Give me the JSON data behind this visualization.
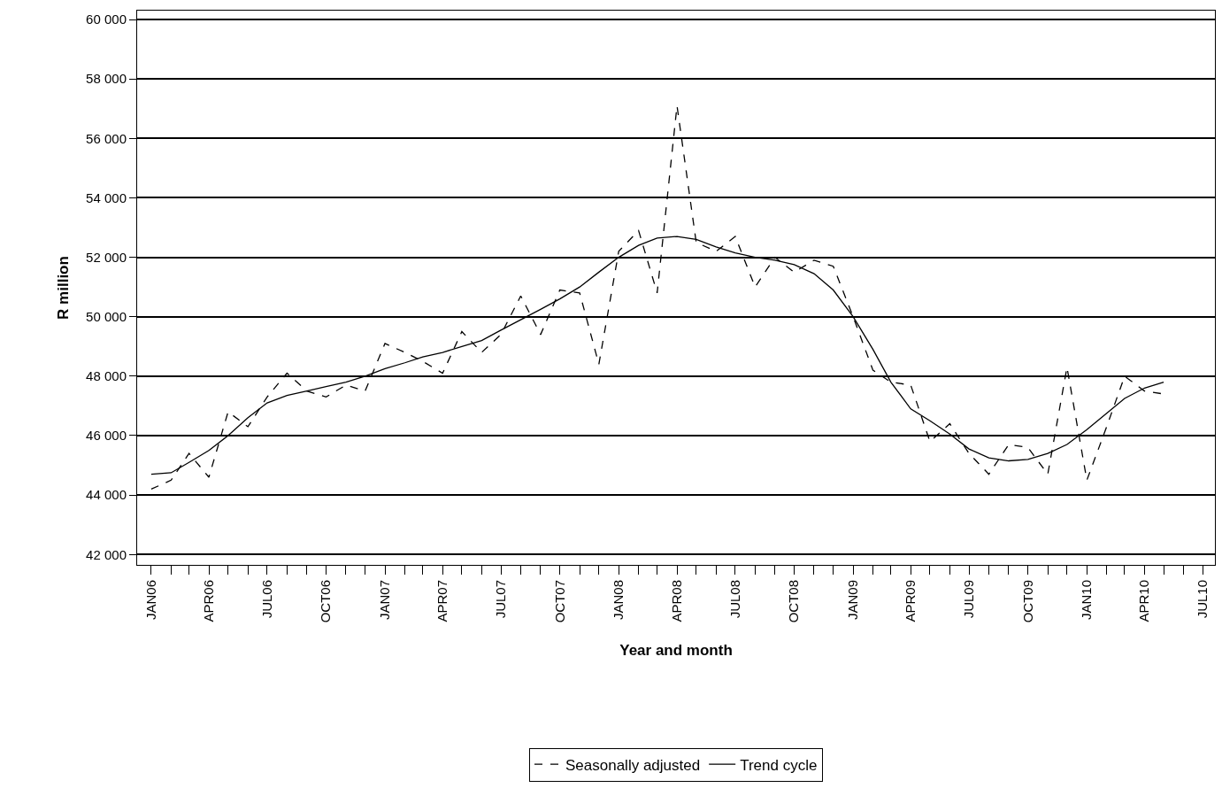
{
  "chart_data": {
    "type": "line",
    "xlabel": "Year and month",
    "ylabel": "R million",
    "x": [
      "2006-01",
      "2006-02",
      "2006-03",
      "2006-04",
      "2006-05",
      "2006-06",
      "2006-07",
      "2006-08",
      "2006-09",
      "2006-10",
      "2006-11",
      "2006-12",
      "2007-01",
      "2007-02",
      "2007-03",
      "2007-04",
      "2007-05",
      "2007-06",
      "2007-07",
      "2007-08",
      "2007-09",
      "2007-10",
      "2007-11",
      "2007-12",
      "2008-01",
      "2008-02",
      "2008-03",
      "2008-04",
      "2008-05",
      "2008-06",
      "2008-07",
      "2008-08",
      "2008-09",
      "2008-10",
      "2008-11",
      "2008-12",
      "2009-01",
      "2009-02",
      "2009-03",
      "2009-04",
      "2009-05",
      "2009-06",
      "2009-07",
      "2009-08",
      "2009-09",
      "2009-10",
      "2009-11",
      "2009-12",
      "2010-01",
      "2010-02",
      "2010-03",
      "2010-04",
      "2010-05"
    ],
    "series": [
      {
        "name": "Seasonally adjusted",
        "color": "#000000",
        "line_style": "dashed",
        "values": [
          44200,
          44500,
          45400,
          44600,
          46800,
          46300,
          47300,
          48100,
          47500,
          47300,
          47700,
          47500,
          49100,
          48800,
          48500,
          48100,
          49500,
          48800,
          49400,
          50700,
          49400,
          50900,
          50800,
          48400,
          52200,
          52900,
          50800,
          57100,
          52500,
          52200,
          52700,
          51000,
          52000,
          51500,
          51900,
          51700,
          50000,
          48200,
          47800,
          47700,
          45800,
          46400,
          45400,
          44700,
          45700,
          45600,
          44700,
          48300,
          44500,
          46300,
          48000,
          47500,
          47400
        ]
      },
      {
        "name": "Trend cycle",
        "color": "#000000",
        "line_style": "solid",
        "values": [
          44700,
          44750,
          45100,
          45500,
          46000,
          46600,
          47100,
          47350,
          47500,
          47650,
          47800,
          48000,
          48250,
          48450,
          48650,
          48800,
          49000,
          49200,
          49550,
          49900,
          50250,
          50600,
          51000,
          51500,
          52000,
          52400,
          52650,
          52700,
          52600,
          52350,
          52150,
          52000,
          51900,
          51750,
          51450,
          50900,
          50000,
          48900,
          47800,
          46900,
          46500,
          46050,
          45550,
          45250,
          45150,
          45200,
          45400,
          45700,
          46200,
          46750,
          47250,
          47600,
          47800
        ]
      }
    ],
    "xlim": [
      "2005-12-10",
      "2010-07-20"
    ],
    "xticks": [
      {
        "value": "2006-01",
        "label": "JAN06"
      },
      {
        "value": "2006-02",
        "label": null
      },
      {
        "value": "2006-03",
        "label": null
      },
      {
        "value": "2006-04",
        "label": "APR06"
      },
      {
        "value": "2006-05",
        "label": null
      },
      {
        "value": "2006-06",
        "label": null
      },
      {
        "value": "2006-07",
        "label": "JUL06"
      },
      {
        "value": "2006-08",
        "label": null
      },
      {
        "value": "2006-09",
        "label": null
      },
      {
        "value": "2006-10",
        "label": "OCT06"
      },
      {
        "value": "2006-11",
        "label": null
      },
      {
        "value": "2006-12",
        "label": null
      },
      {
        "value": "2007-01",
        "label": "JAN07"
      },
      {
        "value": "2007-02",
        "label": null
      },
      {
        "value": "2007-03",
        "label": null
      },
      {
        "value": "2007-04",
        "label": "APR07"
      },
      {
        "value": "2007-05",
        "label": null
      },
      {
        "value": "2007-06",
        "label": null
      },
      {
        "value": "2007-07",
        "label": "JUL07"
      },
      {
        "value": "2007-08",
        "label": null
      },
      {
        "value": "2007-09",
        "label": null
      },
      {
        "value": "2007-10",
        "label": "OCT07"
      },
      {
        "value": "2007-11",
        "label": null
      },
      {
        "value": "2007-12",
        "label": null
      },
      {
        "value": "2008-01",
        "label": "JAN08"
      },
      {
        "value": "2008-02",
        "label": null
      },
      {
        "value": "2008-03",
        "label": null
      },
      {
        "value": "2008-04",
        "label": "APR08"
      },
      {
        "value": "2008-05",
        "label": null
      },
      {
        "value": "2008-06",
        "label": null
      },
      {
        "value": "2008-07",
        "label": "JUL08"
      },
      {
        "value": "2008-08",
        "label": null
      },
      {
        "value": "2008-09",
        "label": null
      },
      {
        "value": "2008-10",
        "label": "OCT08"
      },
      {
        "value": "2008-11",
        "label": null
      },
      {
        "value": "2008-12",
        "label": null
      },
      {
        "value": "2009-01",
        "label": "JAN09"
      },
      {
        "value": "2009-02",
        "label": null
      },
      {
        "value": "2009-03",
        "label": null
      },
      {
        "value": "2009-04",
        "label": "APR09"
      },
      {
        "value": "2009-05",
        "label": null
      },
      {
        "value": "2009-06",
        "label": null
      },
      {
        "value": "2009-07",
        "label": "JUL09"
      },
      {
        "value": "2009-08",
        "label": null
      },
      {
        "value": "2009-09",
        "label": null
      },
      {
        "value": "2009-10",
        "label": "OCT09"
      },
      {
        "value": "2009-11",
        "label": null
      },
      {
        "value": "2009-12",
        "label": null
      },
      {
        "value": "2010-01",
        "label": "JAN10"
      },
      {
        "value": "2010-02",
        "label": null
      },
      {
        "value": "2010-03",
        "label": null
      },
      {
        "value": "2010-04",
        "label": "APR10"
      },
      {
        "value": "2010-05",
        "label": null
      },
      {
        "value": "2010-06",
        "label": null
      },
      {
        "value": "2010-07",
        "label": "JUL10"
      }
    ],
    "ylim": [
      41650,
      60300
    ],
    "yticks": [
      {
        "value": 42000,
        "label": "42 000"
      },
      {
        "value": 44000,
        "label": "44 000"
      },
      {
        "value": 46000,
        "label": "46 000"
      },
      {
        "value": 48000,
        "label": "48 000"
      },
      {
        "value": 50000,
        "label": "50 000"
      },
      {
        "value": 52000,
        "label": "52 000"
      },
      {
        "value": 54000,
        "label": "54 000"
      },
      {
        "value": 56000,
        "label": "56 000"
      },
      {
        "value": 58000,
        "label": "58 000"
      },
      {
        "value": 60000,
        "label": "60 000"
      }
    ],
    "grid": "y",
    "legend": "bottom",
    "marker": "none"
  }
}
